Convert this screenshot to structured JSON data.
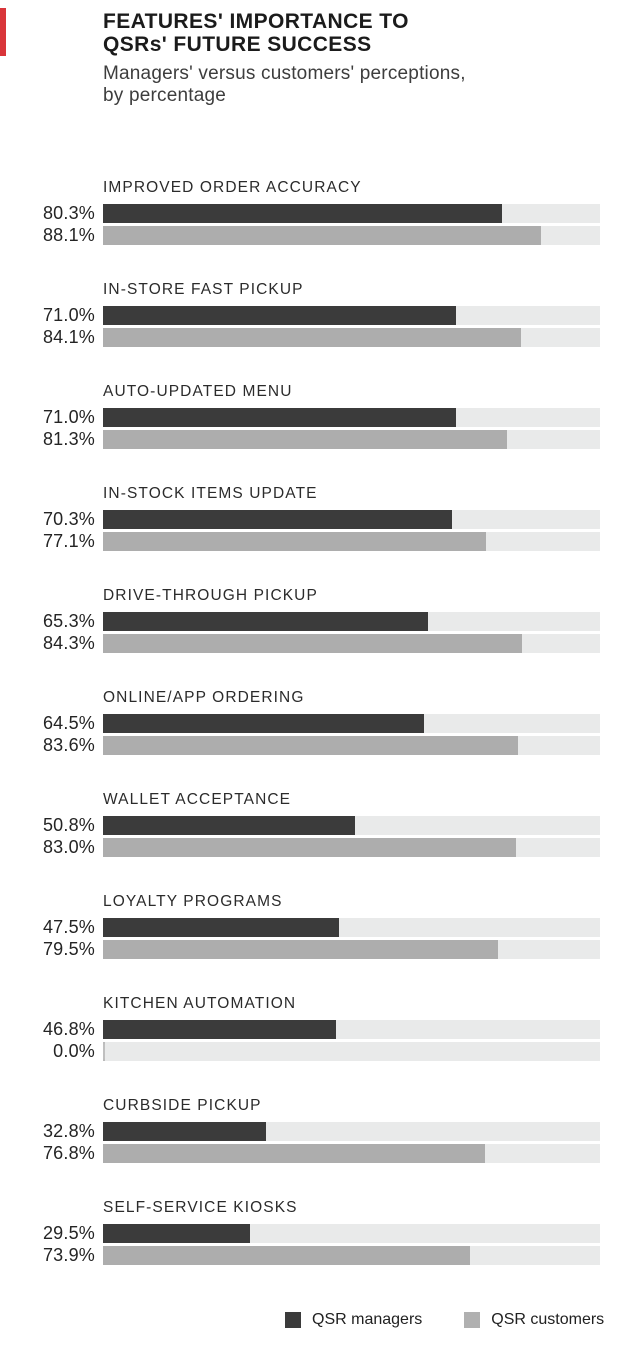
{
  "accent": {
    "color": "#d9353a"
  },
  "header": {
    "title_line1": "FEATURES' IMPORTANCE TO",
    "title_line2": "QSRs' FUTURE SUCCESS",
    "subtitle_line1": "Managers' versus customers' perceptions,",
    "subtitle_line2": "by percentage"
  },
  "legend": {
    "items": [
      {
        "label": "QSR managers",
        "color": "#3b3b3b"
      },
      {
        "label": "QSR customers",
        "color": "#b0b0b0"
      }
    ]
  },
  "chart_data": {
    "type": "bar",
    "orientation": "horizontal",
    "title": "FEATURES' IMPORTANCE TO QSRs' FUTURE SUCCESS",
    "subtitle": "Managers' versus customers' perceptions, by percentage",
    "value_format": "percent_one_decimal",
    "xlim": [
      0,
      100
    ],
    "grid": false,
    "legend_position": "bottom-right",
    "categories": [
      "IMPROVED ORDER ACCURACY",
      "IN-STORE FAST PICKUP",
      "AUTO-UPDATED MENU",
      "IN-STOCK ITEMS UPDATE",
      "DRIVE-THROUGH PICKUP",
      "ONLINE/APP ORDERING",
      "WALLET ACCEPTANCE",
      "LOYALTY PROGRAMS",
      "KITCHEN AUTOMATION",
      "CURBSIDE PICKUP",
      "SELF-SERVICE KIOSKS"
    ],
    "series": [
      {
        "name": "QSR managers",
        "color": "#3b3b3b",
        "values": [
          80.3,
          71.0,
          71.0,
          70.3,
          65.3,
          64.5,
          50.8,
          47.5,
          46.8,
          32.8,
          29.5
        ]
      },
      {
        "name": "QSR customers",
        "color": "#adadad",
        "values": [
          88.1,
          84.1,
          81.3,
          77.1,
          84.3,
          83.6,
          83.0,
          79.5,
          0.0,
          76.8,
          73.9
        ]
      }
    ],
    "track_color": "#e9eaea",
    "layout": {
      "first_group_top": 180,
      "group_pitch": 102
    }
  }
}
